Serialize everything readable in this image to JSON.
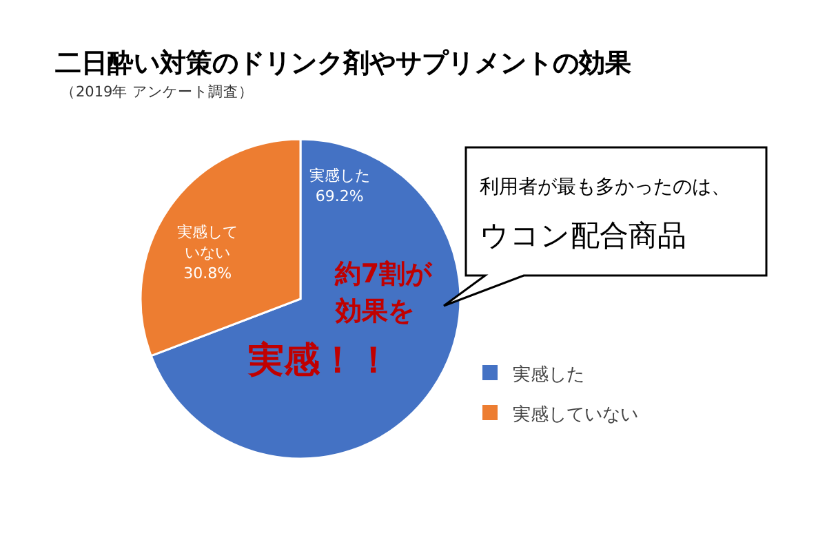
{
  "chart_data": {
    "type": "pie",
    "title": "二日酔い対策のドリンク剤やサプリメントの効果",
    "subtitle": "（2019年 アンケート調査）",
    "categories": [
      "実感した",
      "実感していない"
    ],
    "values": [
      69.2,
      30.8
    ],
    "colors": [
      "#4472c4",
      "#ed7d31"
    ],
    "value_labels": [
      "実感した\n69.2%",
      "実感していない\n30.8%"
    ],
    "legend": "right",
    "annotations": [
      "利用者が最も多かったのは、",
      "ウコン配合商品",
      "約7割が",
      "効果を",
      "実感！！"
    ]
  }
}
